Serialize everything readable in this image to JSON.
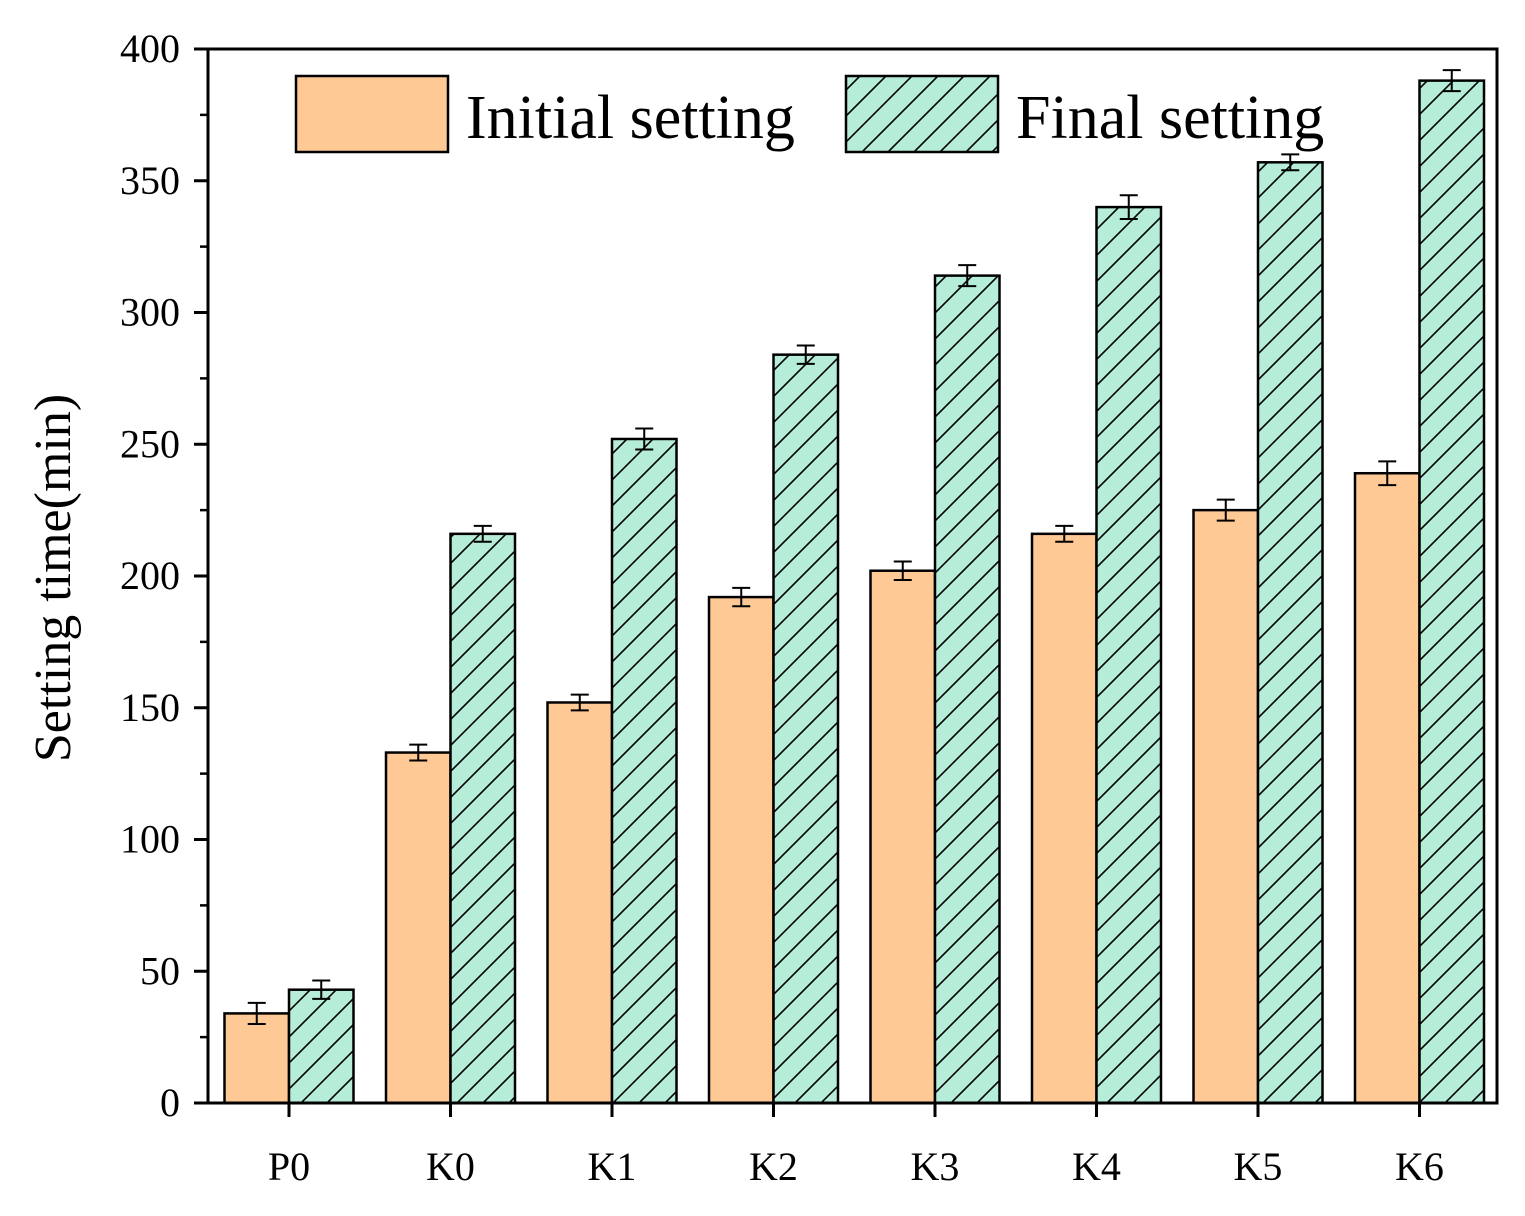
{
  "chart_data": {
    "type": "bar",
    "title": "",
    "xlabel": "",
    "ylabel": "Setting time(min)",
    "ylim": [
      0,
      400
    ],
    "yticks": [
      0,
      50,
      100,
      150,
      200,
      250,
      300,
      350,
      400
    ],
    "categories": [
      "P0",
      "K0",
      "K1",
      "K2",
      "K3",
      "K4",
      "K5",
      "K6"
    ],
    "series": [
      {
        "name": "Initial setting",
        "color": "#FFC995",
        "pattern": "solid",
        "values": [
          34,
          133,
          152,
          192,
          202,
          216,
          225,
          239
        ],
        "errors": [
          4,
          3,
          3,
          3.5,
          3.5,
          3,
          4,
          4.5
        ]
      },
      {
        "name": "Final setting",
        "color": "#B5EDD8",
        "pattern": "diagonal-hatch",
        "values": [
          43,
          216,
          252,
          284,
          314,
          340,
          357,
          388
        ],
        "errors": [
          3.5,
          3,
          4,
          3.5,
          4,
          4.5,
          3,
          4
        ]
      }
    ],
    "legend": "top-center",
    "grid": false
  }
}
